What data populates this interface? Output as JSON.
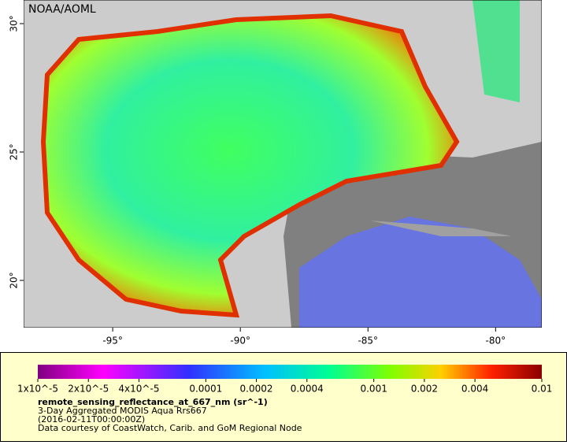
{
  "map": {
    "label": "NOAA/AOML",
    "xlim": [
      -98.49,
      -78.19
    ],
    "ylim": [
      18.16,
      30.92
    ],
    "xticks": [
      {
        "value": -95,
        "label": "-95°"
      },
      {
        "value": -90,
        "label": "-90°"
      },
      {
        "value": -85,
        "label": "-85°"
      },
      {
        "value": -80,
        "label": "-80°"
      }
    ],
    "yticks": [
      {
        "value": 30,
        "label": "30°"
      },
      {
        "value": 25,
        "label": "25°"
      },
      {
        "value": 20,
        "label": "20°"
      }
    ]
  },
  "colorbar": {
    "range": [
      1e-05,
      0.01
    ],
    "log": true,
    "ticks": [
      {
        "value": 1e-05,
        "label": "1x10^-5"
      },
      {
        "value": 2e-05,
        "label": "2x10^-5"
      },
      {
        "value": 4e-05,
        "label": "4x10^-5"
      },
      0.0001,
      0.0002,
      0.0004,
      0.001,
      0.002,
      0.004,
      0.01
    ]
  },
  "legend": {
    "title": "remote_sensing_reflectance_at_667_nm (sr^-1)",
    "lines": [
      "3-Day Aggregated MODIS Aqua Rrs667",
      "(2016-02-11T00:00:00Z)",
      "Data courtesy of CoastWatch, Carib. and GoM Regional Node"
    ]
  }
}
